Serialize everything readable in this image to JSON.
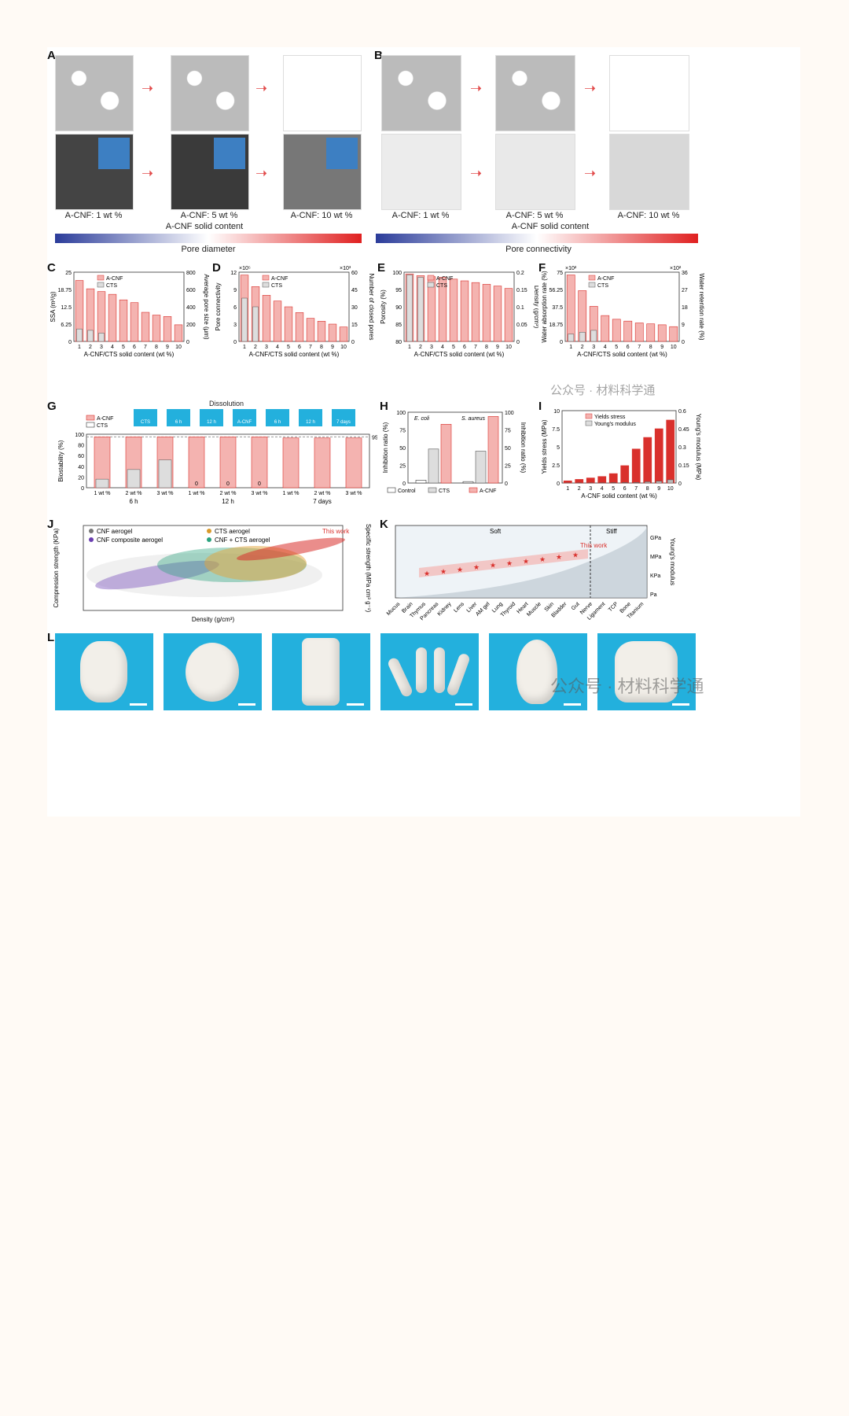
{
  "panels": {
    "A": {
      "label": "A",
      "captions": [
        "A-CNF: 1 wt %",
        "A-CNF: 5 wt %",
        "A-CNF: 10 wt %"
      ],
      "axis": "A-CNF solid content",
      "gradient_label": "Pore diameter"
    },
    "B": {
      "label": "B",
      "captions": [
        "A-CNF: 1 wt %",
        "A-CNF: 5 wt %",
        "A-CNF: 10 wt %"
      ],
      "axis": "A-CNF solid content",
      "gradient_label": "Pore connectivity"
    },
    "C": {
      "label": "C"
    },
    "D": {
      "label": "D"
    },
    "E": {
      "label": "E"
    },
    "F": {
      "label": "F"
    },
    "G": {
      "label": "G",
      "dissolution": "Dissolution",
      "photo_labels": [
        "CTS",
        "6 h",
        "12 h",
        "A-CNF",
        "6 h",
        "12 h",
        "7 days"
      ]
    },
    "H": {
      "label": "H"
    },
    "I": {
      "label": "I"
    },
    "J": {
      "label": "J"
    },
    "K": {
      "label": "K"
    },
    "L": {
      "label": "L"
    }
  },
  "watermark": "公众号 · 材料科学通",
  "colors": {
    "red": "#d9302c",
    "gray": "#9a9a9a",
    "light_red": "#f4b3b0",
    "blue": "#23b0dd"
  },
  "chart_data": [
    {
      "panel": "C",
      "type": "bar",
      "x": [
        1,
        2,
        3,
        4,
        5,
        6,
        7,
        8,
        9,
        10
      ],
      "xlabel": "A-CNF/CTS solid content (wt %)",
      "ylabel": "SSA (m²/g)",
      "y2label": "Average pore size (μm)",
      "ylim": [
        0,
        25
      ],
      "y2lim": [
        0,
        800
      ],
      "series": [
        {
          "name": "A-CNF",
          "values": [
            22,
            19,
            18,
            17,
            15,
            14,
            10.5,
            9.5,
            9,
            6
          ]
        },
        {
          "name": "CTS",
          "values": [
            4.5,
            4,
            3,
            null,
            null,
            null,
            null,
            null,
            null,
            null
          ]
        }
      ]
    },
    {
      "panel": "D",
      "type": "bar",
      "x": [
        1,
        2,
        3,
        4,
        5,
        6,
        7,
        8,
        9,
        10
      ],
      "xlabel": "A-CNF/CTS solid content (wt %)",
      "ylabel": "Pore connectivity",
      "y2label": "Number of closed pores",
      "ylim": [
        0,
        12
      ],
      "y2lim": [
        0,
        60
      ],
      "y_mult": "×10⁵",
      "y2_mult": "×10³",
      "series": [
        {
          "name": "A-CNF",
          "values": [
            11.5,
            9.5,
            8,
            7,
            6,
            5,
            4,
            3.5,
            3,
            2.5
          ]
        },
        {
          "name": "CTS",
          "values": [
            7.5,
            6,
            null,
            null,
            null,
            null,
            null,
            null,
            null,
            null
          ]
        }
      ]
    },
    {
      "panel": "E",
      "type": "bar",
      "x": [
        1,
        2,
        3,
        4,
        5,
        6,
        7,
        8,
        9,
        10
      ],
      "xlabel": "A-CNF/CTS solid content (wt %)",
      "ylabel": "Porosity (%)",
      "y2label": "Density (g/cm³)",
      "ylim": [
        80,
        100
      ],
      "y2lim": [
        0,
        0.2
      ],
      "series": [
        {
          "name": "A-CNF",
          "values": [
            99.5,
            99,
            98.7,
            98.5,
            98,
            97.5,
            97,
            96.5,
            96,
            95.3
          ]
        },
        {
          "name": "CTS",
          "values": [
            99.2,
            98.5,
            null,
            null,
            null,
            null,
            null,
            null,
            null,
            null
          ]
        }
      ]
    },
    {
      "panel": "F",
      "type": "bar",
      "x": [
        1,
        2,
        3,
        4,
        5,
        6,
        7,
        8,
        9,
        10
      ],
      "xlabel": "A-CNF/CTS solid content (wt %)",
      "ylabel": "Water absorption rate (%)",
      "y2label": "Water retention rate (%)",
      "ylim": [
        0,
        75
      ],
      "y2lim": [
        0,
        36
      ],
      "y_mult": "×10²",
      "y2_mult": "×10²",
      "series": [
        {
          "name": "A-CNF",
          "values": [
            72,
            55,
            38,
            28,
            24,
            22,
            20,
            19,
            18,
            16
          ]
        },
        {
          "name": "CTS",
          "values": [
            8,
            10,
            12,
            null,
            null,
            null,
            null,
            null,
            null,
            null
          ]
        }
      ]
    },
    {
      "panel": "G",
      "type": "bar",
      "categories": [
        "1 wt %",
        "2 wt %",
        "3 wt %",
        "1 wt %",
        "2 wt %",
        "3 wt %",
        "1 wt %",
        "2 wt %",
        "3 wt %"
      ],
      "groups": [
        "6 h",
        "12 h",
        "7 days"
      ],
      "ylabel": "Biostability (%)",
      "ylim": [
        0,
        100
      ],
      "ref_line": 95,
      "series": [
        {
          "name": "A-CNF",
          "values": [
            95,
            95,
            95,
            95,
            95,
            95,
            93,
            93,
            93
          ]
        },
        {
          "name": "CTS",
          "values": [
            16,
            34,
            52,
            0,
            0,
            0,
            null,
            null,
            null
          ]
        }
      ]
    },
    {
      "panel": "H",
      "type": "bar",
      "categories": [
        "E. coli",
        "S. aureus"
      ],
      "ylabel": "Inhibition ratio (%)",
      "y2label": "Inhibition ratio (%)",
      "ylim": [
        0,
        100
      ],
      "y2tick_max": 75,
      "series": [
        {
          "name": "Control",
          "values": [
            4,
            2
          ]
        },
        {
          "name": "CTS",
          "values": [
            48,
            45
          ]
        },
        {
          "name": "A-CNF",
          "values": [
            83,
            94
          ]
        }
      ]
    },
    {
      "panel": "I",
      "type": "bar",
      "x": [
        1,
        2,
        3,
        4,
        5,
        6,
        7,
        8,
        9,
        10
      ],
      "xlabel": "A-CNF solid content (wt %)",
      "ylabel": "Yields stress (MPa)",
      "y2label": "Young's modulus (MPa)",
      "ylim": [
        0,
        10
      ],
      "y2lim": [
        0,
        0.6
      ],
      "series": [
        {
          "name": "Yields stress",
          "values": [
            0.3,
            0.5,
            0.7,
            0.9,
            1.3,
            2.4,
            4.7,
            6.3,
            7.5,
            8.7
          ]
        },
        {
          "name": "Young's modulus",
          "values": [
            0.01,
            0.02,
            0.02,
            0.03,
            0.05,
            0.06,
            0.07,
            0.17,
            0.25,
            0.44
          ]
        }
      ]
    },
    {
      "panel": "J",
      "type": "scatter",
      "xlabel": "Density (g/cm³)",
      "ylabel": "Compression strength (KPa)",
      "y2label": "Specific strength (MPa cm³ g⁻¹)",
      "annotation": "This work",
      "series": [
        {
          "name": "CNF aerogel"
        },
        {
          "name": "CTS aerogel"
        },
        {
          "name": "CNF composite aerogel"
        },
        {
          "name": "CNF + CTS aerogel"
        }
      ]
    },
    {
      "panel": "K",
      "type": "line",
      "categories": [
        "Mucus",
        "Brain",
        "Thymus",
        "Pancreas",
        "Kidney",
        "Lens",
        "Liver",
        "AM gel",
        "Lung",
        "Thyroid",
        "Heart",
        "Muscle",
        "Skin",
        "Bladder",
        "Gut",
        "Nerve",
        "Ligament",
        "TCP",
        "Bone",
        "Titanium"
      ],
      "regions": [
        "Soft",
        "Stiff"
      ],
      "y2label": "Young's modulus",
      "annotation": "This work",
      "y2units": [
        "GPa",
        "MPa",
        "KPa",
        "Pa"
      ]
    }
  ]
}
